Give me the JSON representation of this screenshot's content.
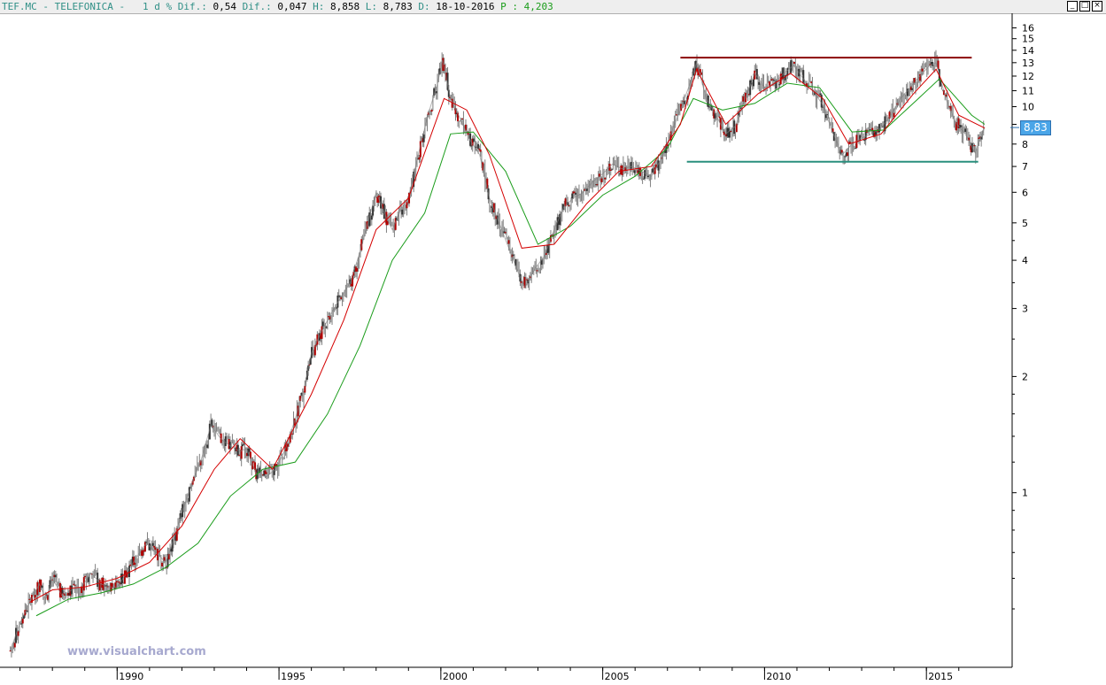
{
  "header": {
    "symbol": "TEF.MC",
    "name": "TELEFONICA",
    "items": [
      {
        "label": "1 d % Dif.:",
        "value": "0,54",
        "color": "#2f8f86"
      },
      {
        "label": "Dif.:",
        "value": "0,047",
        "color": "#2f8f86"
      },
      {
        "label": "H:",
        "value": "8,858",
        "color": "#2f8f86"
      },
      {
        "label": "L:",
        "value": "8,783",
        "color": "#2f8f86"
      },
      {
        "label": "D:",
        "value": "18-10-2016",
        "color": "#2f8f86"
      },
      {
        "label": "P :",
        "value": "4,203",
        "color": "#1a9c1a"
      }
    ],
    "window_buttons": [
      "_",
      "□",
      "×"
    ]
  },
  "watermark": "www.visualchart.com",
  "last_price_label": "8,83",
  "colors": {
    "candle": "#7f7f7f",
    "ma_fast": "#d40000",
    "ma_slow": "#1a9c1a",
    "resistance": "#8b0a0a",
    "support": "#2a8f7e",
    "axis": "#000000",
    "header_value": "#2f8f86"
  },
  "chart_data": {
    "type": "line",
    "title": "",
    "scale": "log",
    "xlabel": "",
    "ylabel": "",
    "x_ticks": [
      "1990",
      "1995",
      "2000",
      "2005",
      "2010",
      "2015"
    ],
    "y_ticks": [
      "16",
      "15",
      "14",
      "13",
      "12",
      "11",
      "10",
      "9",
      "8",
      "7",
      "6",
      "5",
      "4",
      "3",
      "2",
      "1"
    ],
    "ylim": [
      0.38,
      17
    ],
    "xlim": [
      1986.6,
      2016.8
    ],
    "grid": false,
    "series": [
      {
        "key": "price",
        "x": [
          1986.7,
          1987.0,
          1987.3,
          1987.6,
          1987.8,
          1988.0,
          1988.3,
          1988.6,
          1988.9,
          1989.2,
          1989.5,
          1989.8,
          1990.0,
          1990.3,
          1990.6,
          1990.9,
          1991.2,
          1991.5,
          1991.8,
          1992.0,
          1992.3,
          1992.6,
          1992.9,
          1993.2,
          1993.5,
          1993.8,
          1994.0,
          1994.3,
          1994.6,
          1994.9,
          1995.2,
          1995.5,
          1995.8,
          1996.0,
          1996.3,
          1996.6,
          1996.9,
          1997.2,
          1997.5,
          1997.8,
          1998.0,
          1998.3,
          1998.5,
          1998.8,
          1999.0,
          1999.3,
          1999.6,
          1999.9,
          2000.05,
          2000.3,
          2000.6,
          2000.9,
          2001.2,
          2001.5,
          2001.8,
          2002.1,
          2002.4,
          2002.6,
          2002.9,
          2003.2,
          2003.5,
          2003.8,
          2004.1,
          2004.4,
          2004.7,
          2005.0,
          2005.3,
          2005.6,
          2005.9,
          2006.2,
          2006.5,
          2006.8,
          2007.1,
          2007.4,
          2007.7,
          2007.9,
          2008.2,
          2008.5,
          2008.8,
          2009.1,
          2009.4,
          2009.7,
          2010.0,
          2010.3,
          2010.6,
          2010.9,
          2011.2,
          2011.5,
          2011.8,
          2012.1,
          2012.4,
          2012.7,
          2013.0,
          2013.3,
          2013.6,
          2013.9,
          2014.2,
          2014.5,
          2014.8,
          2015.1,
          2015.3,
          2015.6,
          2015.9,
          2016.2,
          2016.5,
          2016.8
        ],
        "y": [
          0.39,
          0.46,
          0.52,
          0.58,
          0.53,
          0.6,
          0.54,
          0.56,
          0.57,
          0.62,
          0.58,
          0.57,
          0.57,
          0.62,
          0.68,
          0.74,
          0.7,
          0.66,
          0.78,
          0.89,
          1.05,
          1.22,
          1.5,
          1.38,
          1.32,
          1.28,
          1.3,
          1.12,
          1.1,
          1.15,
          1.3,
          1.55,
          1.9,
          2.3,
          2.6,
          2.9,
          3.2,
          3.5,
          4.2,
          5.2,
          6.0,
          5.2,
          4.8,
          5.5,
          5.8,
          7.5,
          9.5,
          11.5,
          13.2,
          10.5,
          9.3,
          8.2,
          7.5,
          5.8,
          5.0,
          4.3,
          3.7,
          3.4,
          3.8,
          4.1,
          4.8,
          5.5,
          5.8,
          6.0,
          6.4,
          6.7,
          7.1,
          6.9,
          7.0,
          6.8,
          6.6,
          7.3,
          8.5,
          9.8,
          11.5,
          13.0,
          10.5,
          9.5,
          8.5,
          8.9,
          10.5,
          12.2,
          11.2,
          11.5,
          12.2,
          12.8,
          11.8,
          11.0,
          10.1,
          8.6,
          7.5,
          8.0,
          8.3,
          8.5,
          8.8,
          9.5,
          10.5,
          11.2,
          12.0,
          12.8,
          13.0,
          10.5,
          9.1,
          8.5,
          7.6,
          8.83
        ]
      },
      {
        "key": "ma_fast",
        "x": [
          1987.3,
          1988.0,
          1989.0,
          1990.0,
          1991.0,
          1992.0,
          1993.0,
          1993.8,
          1994.8,
          1996.0,
          1997.0,
          1998.0,
          1999.0,
          2000.1,
          2000.8,
          2001.5,
          2002.5,
          2003.5,
          2004.5,
          2005.5,
          2006.5,
          2007.4,
          2007.9,
          2008.8,
          2009.8,
          2010.8,
          2011.8,
          2012.6,
          2013.6,
          2014.6,
          2015.3,
          2016.0,
          2016.8
        ],
        "y": [
          0.52,
          0.56,
          0.57,
          0.6,
          0.66,
          0.82,
          1.15,
          1.38,
          1.15,
          1.8,
          2.8,
          4.8,
          5.8,
          10.5,
          9.8,
          7.5,
          4.3,
          4.4,
          5.6,
          6.8,
          7.0,
          9.0,
          12.5,
          9.0,
          10.8,
          12.2,
          10.5,
          8.0,
          8.5,
          10.8,
          12.5,
          9.5,
          8.8
        ]
      },
      {
        "key": "ma_slow",
        "x": [
          1987.5,
          1988.5,
          1989.5,
          1990.5,
          1991.5,
          1992.5,
          1993.5,
          1994.5,
          1995.5,
          1996.5,
          1997.5,
          1998.5,
          1999.5,
          2000.3,
          2001.0,
          2002.0,
          2003.0,
          2004.0,
          2005.0,
          2006.0,
          2007.0,
          2007.8,
          2008.7,
          2009.7,
          2010.7,
          2011.7,
          2012.7,
          2013.7,
          2014.7,
          2015.4,
          2016.4,
          2016.8
        ],
        "y": [
          0.48,
          0.53,
          0.55,
          0.58,
          0.64,
          0.74,
          0.98,
          1.15,
          1.2,
          1.6,
          2.4,
          4.0,
          5.3,
          8.5,
          8.6,
          6.8,
          4.4,
          4.9,
          5.9,
          6.6,
          7.8,
          10.5,
          9.8,
          10.2,
          11.5,
          11.2,
          8.6,
          8.7,
          10.4,
          11.8,
          9.5,
          9.0
        ]
      },
      {
        "key": "resistance",
        "x": [
          2007.4,
          2016.4
        ],
        "y": [
          13.4,
          13.4
        ]
      },
      {
        "key": "support",
        "x": [
          2007.6,
          2016.6
        ],
        "y": [
          7.2,
          7.2
        ]
      }
    ]
  }
}
